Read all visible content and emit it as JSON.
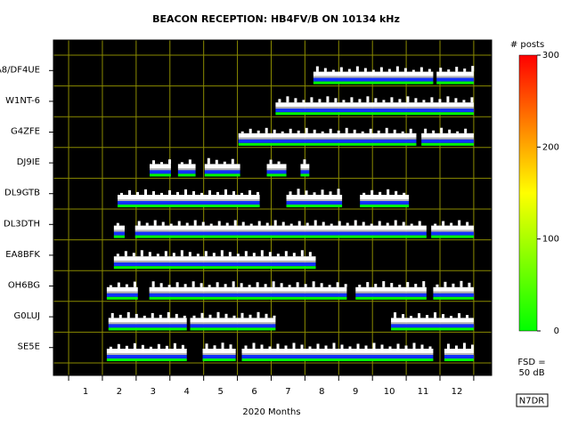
{
  "chart_data": {
    "type": "reception",
    "title": "BEACON RECEPTION: HB4FV/B ON 10134 kHz",
    "xlabel": "2020 Months",
    "categories": [
      "A8/DF4UE",
      "W1NT-6",
      "G4ZFE",
      "DJ9IE",
      "DL9GTB",
      "DL3DTH",
      "EA8BFK",
      "OH6BG",
      "G0LUJ",
      "SE5E"
    ],
    "xlim": [
      0.55,
      13.53
    ],
    "xticks": [
      1,
      2,
      3,
      4,
      5,
      6,
      7,
      8,
      9,
      10,
      11,
      12,
      13
    ],
    "month_labels": [
      1,
      2,
      3,
      4,
      5,
      6,
      7,
      8,
      9,
      10,
      11,
      12
    ],
    "intervals": [
      [
        {
          "start": 8.25,
          "end": 11.8
        },
        {
          "start": 11.9,
          "end": 13
        }
      ],
      [
        {
          "start": 7.13,
          "end": 13
        }
      ],
      [
        {
          "start": 6.03,
          "end": 11.3
        },
        {
          "start": 11.45,
          "end": 13
        }
      ],
      [
        {
          "start": 3.4,
          "end": 4.03
        },
        {
          "start": 4.24,
          "end": 4.76
        },
        {
          "start": 5.03,
          "end": 6.08
        },
        {
          "start": 6.87,
          "end": 7.45
        },
        {
          "start": 7.87,
          "end": 8.13
        }
      ],
      [
        {
          "start": 2.45,
          "end": 6.66
        },
        {
          "start": 7.45,
          "end": 9.1
        },
        {
          "start": 9.63,
          "end": 11.08
        }
      ],
      [
        {
          "start": 2.34,
          "end": 2.66
        },
        {
          "start": 2.97,
          "end": 11.6
        },
        {
          "start": 11.74,
          "end": 13
        }
      ],
      [
        {
          "start": 2.34,
          "end": 8.32
        }
      ],
      [
        {
          "start": 2.13,
          "end": 3.05
        },
        {
          "start": 3.39,
          "end": 9.24
        },
        {
          "start": 9.5,
          "end": 11.6
        },
        {
          "start": 11.8,
          "end": 13
        }
      ],
      [
        {
          "start": 2.18,
          "end": 4.5
        },
        {
          "start": 4.6,
          "end": 7.13
        },
        {
          "start": 10.55,
          "end": 13
        }
      ],
      [
        {
          "start": 2.13,
          "end": 4.5
        },
        {
          "start": 4.97,
          "end": 5.95
        },
        {
          "start": 6.13,
          "end": 11.8
        },
        {
          "start": 12.13,
          "end": 13
        }
      ]
    ],
    "colorbar_label": "# posts",
    "colorbar_lim": [
      0,
      300
    ],
    "colorbar_ticks": [
      0,
      100,
      200,
      300
    ],
    "colorbar_colors": [
      "#00ff00",
      "#ffff00",
      "#ff0000"
    ],
    "fsd_label": "FSD =",
    "fsd_value": "50 dB",
    "credit": "N7DR",
    "background": "#000000",
    "grid_color": "#8a8a00"
  }
}
